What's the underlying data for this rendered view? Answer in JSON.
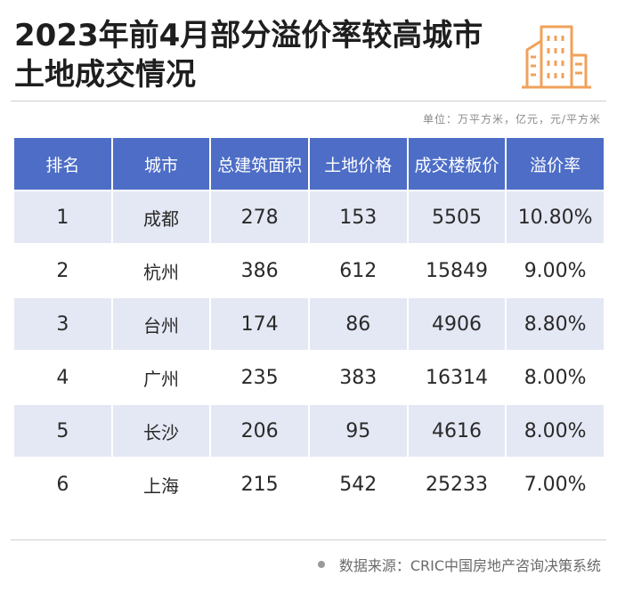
{
  "title": "2023年前4月部分溢价率较高城市土地成交情况",
  "unit_note": "单位：万平方米，亿元，元/平方米",
  "table": {
    "headers": [
      "排名",
      "城市",
      "总建筑面积",
      "土地价格",
      "成交楼板价",
      "溢价率"
    ],
    "rows": [
      [
        "1",
        "成都",
        "278",
        "153",
        "5505",
        "10.80%"
      ],
      [
        "2",
        "杭州",
        "386",
        "612",
        "15849",
        "9.00%"
      ],
      [
        "3",
        "台州",
        "174",
        "86",
        "4906",
        "8.80%"
      ],
      [
        "4",
        "广州",
        "235",
        "383",
        "16314",
        "8.00%"
      ],
      [
        "5",
        "长沙",
        "206",
        "95",
        "4616",
        "8.00%"
      ],
      [
        "6",
        "上海",
        "215",
        "542",
        "25233",
        "7.00%"
      ]
    ]
  },
  "source": "数据来源：CRIC中国房地产咨询决策系统",
  "logo": {
    "icon": "city-buildings-icon",
    "color": "#f0a15a"
  },
  "colors": {
    "header": "#4d6dc6",
    "stripe": "#e4e8f4"
  }
}
